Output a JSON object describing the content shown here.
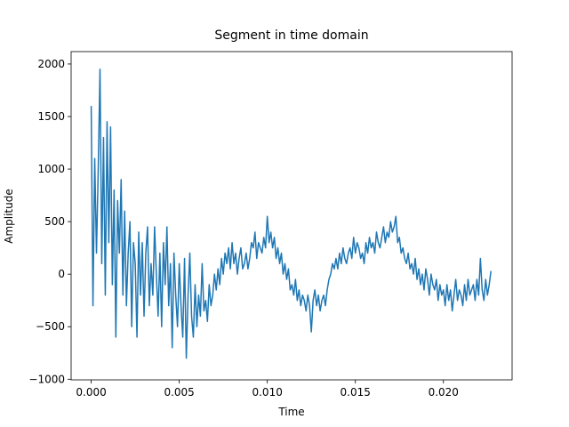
{
  "chart_data": {
    "type": "line",
    "title": "Segment in time domain",
    "x_label": "Time",
    "y_label": "Amplitude",
    "color": "#1f77b4",
    "xlim": [
      -0.00114,
      0.0239
    ],
    "ylim": [
      -1006,
      2118
    ],
    "xticks": [
      {
        "value": 0,
        "label": "0.000"
      },
      {
        "value": 0.005,
        "label": "0.005"
      },
      {
        "value": 0.01,
        "label": "0.010"
      },
      {
        "value": 0.015,
        "label": "0.015"
      },
      {
        "value": 0.02,
        "label": "0.020"
      }
    ],
    "yticks": [
      {
        "value": -1000,
        "label": "−1000"
      },
      {
        "value": -500,
        "label": "−500"
      },
      0,
      500,
      1000,
      1500,
      2000
    ],
    "x": [
      0,
      0.0001,
      0.0002,
      0.0003,
      0.0004,
      0.0005,
      0.0006,
      0.0007,
      0.0008,
      0.0009,
      0.001,
      0.0011,
      0.0012,
      0.0013,
      0.0014,
      0.0015,
      0.0016,
      0.0017,
      0.0018,
      0.0019,
      0.002,
      0.0021,
      0.0022,
      0.0023,
      0.0024,
      0.0025,
      0.0026,
      0.0027,
      0.0028,
      0.0029,
      0.003,
      0.0031,
      0.0032,
      0.0033,
      0.0034,
      0.0035,
      0.0036,
      0.0037,
      0.0038,
      0.0039,
      0.004,
      0.0041,
      0.0042,
      0.0043,
      0.0044,
      0.0045,
      0.0046,
      0.0047,
      0.0048,
      0.0049,
      0.005,
      0.0051,
      0.0052,
      0.0053,
      0.0054,
      0.0055,
      0.0056,
      0.0057,
      0.0058,
      0.0059,
      0.006,
      0.0061,
      0.0062,
      0.0063,
      0.0064,
      0.0065,
      0.0066,
      0.0067,
      0.0068,
      0.0069,
      0.007,
      0.0071,
      0.0072,
      0.0073,
      0.0074,
      0.0075,
      0.0076,
      0.0077,
      0.0078,
      0.0079,
      0.008,
      0.0081,
      0.0082,
      0.0083,
      0.0084,
      0.0085,
      0.0086,
      0.0087,
      0.0088,
      0.0089,
      0.009,
      0.0091,
      0.0092,
      0.0093,
      0.0094,
      0.0095,
      0.0096,
      0.0097,
      0.0098,
      0.0099,
      0.01,
      0.0101,
      0.0102,
      0.0103,
      0.0104,
      0.0105,
      0.0106,
      0.0107,
      0.0108,
      0.0109,
      0.011,
      0.0111,
      0.0112,
      0.0113,
      0.0114,
      0.0115,
      0.0116,
      0.0117,
      0.0118,
      0.0119,
      0.012,
      0.0121,
      0.0122,
      0.0123,
      0.0124,
      0.0125,
      0.0126,
      0.0127,
      0.0128,
      0.0129,
      0.013,
      0.0131,
      0.0132,
      0.0133,
      0.0134,
      0.0135,
      0.0136,
      0.0137,
      0.0138,
      0.0139,
      0.014,
      0.0141,
      0.0142,
      0.0143,
      0.0144,
      0.0145,
      0.0146,
      0.0147,
      0.0148,
      0.0149,
      0.015,
      0.0151,
      0.0152,
      0.0153,
      0.0154,
      0.0155,
      0.0156,
      0.0157,
      0.0158,
      0.0159,
      0.016,
      0.0161,
      0.0162,
      0.0163,
      0.0164,
      0.0165,
      0.0166,
      0.0167,
      0.0168,
      0.0169,
      0.017,
      0.0171,
      0.0172,
      0.0173,
      0.0174,
      0.0175,
      0.0176,
      0.0177,
      0.0178,
      0.0179,
      0.018,
      0.0181,
      0.0182,
      0.0183,
      0.0184,
      0.0185,
      0.0186,
      0.0187,
      0.0188,
      0.0189,
      0.019,
      0.0191,
      0.0192,
      0.0193,
      0.0194,
      0.0195,
      0.0196,
      0.0197,
      0.0198,
      0.0199,
      0.02,
      0.0201,
      0.0202,
      0.0203,
      0.0204,
      0.0205,
      0.0206,
      0.0207,
      0.0208,
      0.0209,
      0.021,
      0.0211,
      0.0212,
      0.0213,
      0.0214,
      0.0215,
      0.0216,
      0.0217,
      0.0218,
      0.0219,
      0.022,
      0.0221,
      0.0222,
      0.0223,
      0.0224,
      0.0225,
      0.0226,
      0.0227
    ],
    "values": [
      1600,
      -300,
      1100,
      200,
      1000,
      1950,
      100,
      1300,
      -200,
      1450,
      300,
      1400,
      -100,
      800,
      -600,
      700,
      200,
      900,
      -200,
      600,
      -300,
      200,
      500,
      -500,
      300,
      100,
      -600,
      400,
      -200,
      300,
      -400,
      200,
      450,
      -300,
      100,
      -200,
      450,
      0,
      -400,
      200,
      -500,
      300,
      -100,
      450,
      -300,
      100,
      -700,
      200,
      -200,
      -500,
      100,
      -300,
      -600,
      150,
      -800,
      -200,
      200,
      -400,
      -600,
      -100,
      -500,
      -200,
      -400,
      100,
      -350,
      -250,
      -450,
      -100,
      -300,
      -200,
      0,
      -150,
      50,
      -100,
      150,
      0,
      200,
      100,
      250,
      50,
      300,
      100,
      200,
      0,
      150,
      250,
      50,
      100,
      200,
      50,
      150,
      300,
      250,
      400,
      150,
      300,
      250,
      200,
      350,
      250,
      550,
      300,
      400,
      250,
      350,
      150,
      250,
      100,
      200,
      0,
      100,
      -50,
      50,
      -150,
      -100,
      -200,
      -50,
      -250,
      -150,
      -300,
      -200,
      -250,
      -350,
      -200,
      -300,
      -550,
      -250,
      -150,
      -300,
      -200,
      -350,
      -250,
      -200,
      -300,
      -150,
      -50,
      0,
      100,
      50,
      150,
      50,
      200,
      100,
      250,
      150,
      100,
      200,
      250,
      150,
      350,
      200,
      300,
      250,
      150,
      200,
      100,
      300,
      200,
      350,
      250,
      300,
      200,
      400,
      300,
      250,
      350,
      450,
      300,
      400,
      350,
      500,
      400,
      450,
      550,
      300,
      350,
      200,
      250,
      150,
      100,
      200,
      50,
      100,
      0,
      150,
      -50,
      50,
      -100,
      0,
      -150,
      50,
      -50,
      -200,
      0,
      -100,
      -150,
      -50,
      -250,
      -100,
      -200,
      -150,
      -300,
      -100,
      -250,
      -150,
      -350,
      -200,
      -50,
      -250,
      -150,
      -200,
      -300,
      -100,
      -250,
      -50,
      -200,
      -150,
      -100,
      -250,
      -50,
      -200,
      150,
      -150,
      -250,
      -50,
      -200,
      -100,
      30
    ]
  }
}
